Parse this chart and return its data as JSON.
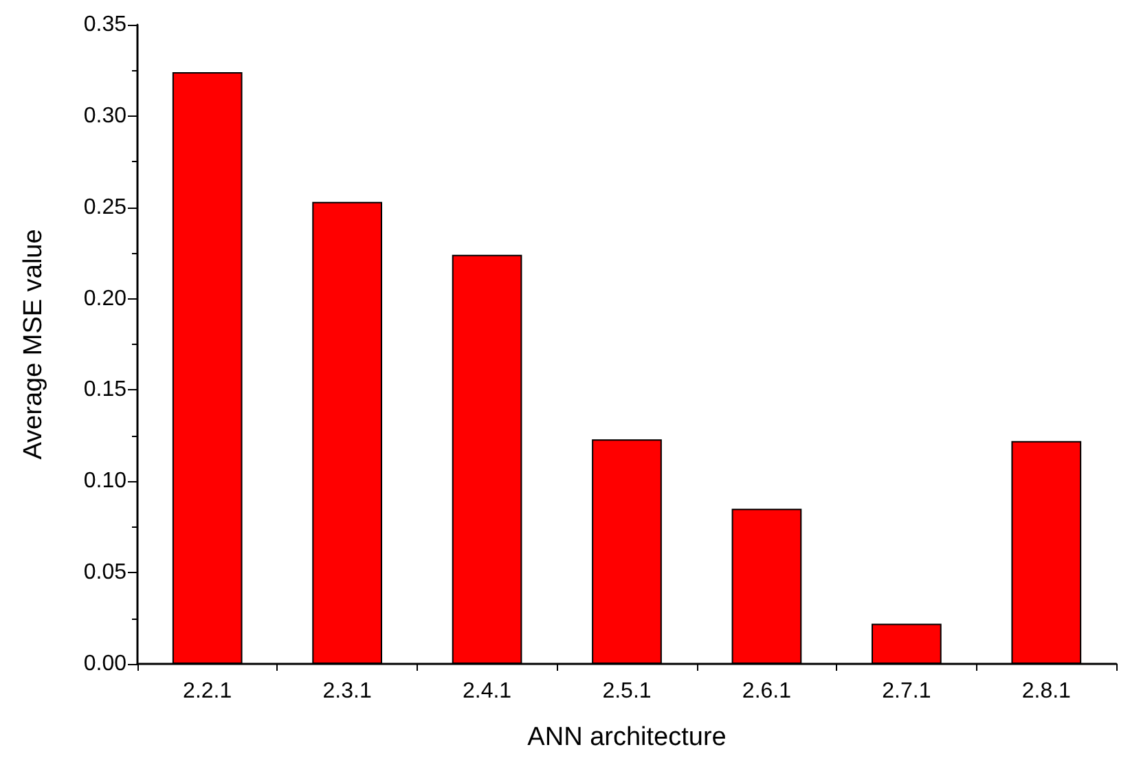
{
  "chart_data": {
    "type": "bar",
    "xlabel": "ANN architecture",
    "ylabel": "Average MSE value",
    "categories": [
      "2.2.1",
      "2.3.1",
      "2.4.1",
      "2.5.1",
      "2.6.1",
      "2.7.1",
      "2.8.1"
    ],
    "values": [
      0.324,
      0.253,
      0.224,
      0.123,
      0.085,
      0.022,
      0.122
    ],
    "color": "#ff0000",
    "ylim": [
      0,
      0.35
    ],
    "yticks": [
      {
        "value": 0,
        "label": "0.00"
      },
      0.05,
      {
        "value": 0.1,
        "label": "0.10"
      },
      0.15,
      {
        "value": 0.2,
        "label": "0.20"
      },
      0.25,
      {
        "value": 0.3,
        "label": "0.30"
      },
      0.35
    ],
    "grid": false
  }
}
